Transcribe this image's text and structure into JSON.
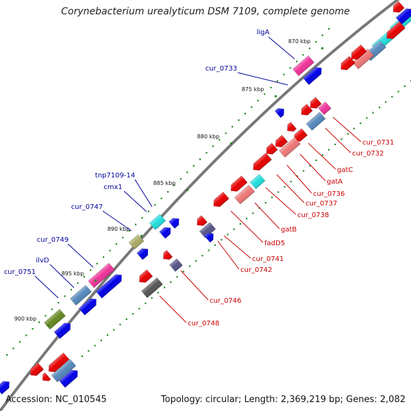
{
  "title": "Corynebacterium urealyticum DSM 7109, complete genome",
  "accession": "Accession: NC_010545",
  "summary": "Topology: circular; Length: 2,369,219 bp; Genes: 2,082",
  "colors": {
    "backbone": "#777777",
    "forward_gene": "#0000e6",
    "reverse_gene": "#e60000",
    "pink": "#ee3399",
    "cyan": "#22dddd",
    "steel": "#5588bb",
    "salmon": "#ee7777",
    "olive": "#aaaa66",
    "dark_olive": "#668822",
    "slate": "#555588",
    "dark_grey": "#555555",
    "label_forward": "#000099",
    "label_reverse": "#cc0000",
    "tick_green": "#228822"
  },
  "kbp_ticks": [
    "870 kbp",
    "875 kbp",
    "880 kbp",
    "885 kbp",
    "890 kbp",
    "895 kbp",
    "900 kbp"
  ],
  "forward_labels": [
    "ligA",
    "cur_0733",
    "tnp7109-14",
    "cmx1",
    "cur_0747",
    "cur_0749",
    "ilvD",
    "cur_0751"
  ],
  "reverse_labels": [
    "cur_0731",
    "cur_0732",
    "gatC",
    "gatA",
    "cur_0736",
    "cur_0737",
    "cur_0738",
    "gatB",
    "fadD5",
    "cur_0741",
    "cur_0742",
    "cur_0746",
    "cur_0748"
  ]
}
